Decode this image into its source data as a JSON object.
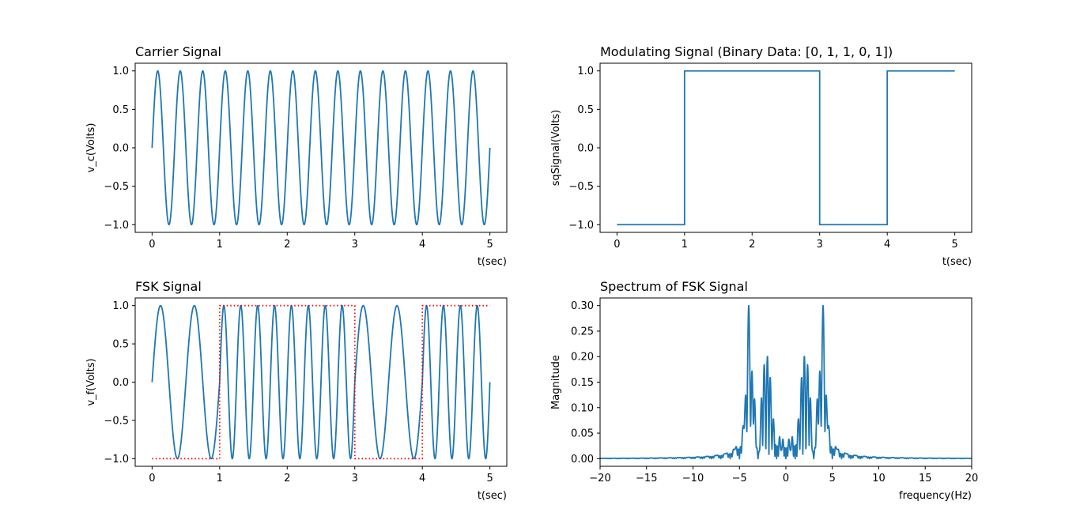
{
  "colors": {
    "line": "#1f77b4",
    "dotted": "#ff0000",
    "axes": "#000000",
    "background": "#ffffff"
  },
  "chart_data": [
    {
      "id": "carrier",
      "type": "line",
      "title": "Carrier Signal",
      "xlabel": "t(sec)",
      "ylabel": "v_c(Volts)",
      "xlim": [
        -0.25,
        5.25
      ],
      "ylim": [
        -1.1,
        1.1
      ],
      "xticks": [
        0,
        1,
        2,
        3,
        4,
        5
      ],
      "xtick_labels": [
        "0",
        "1",
        "2",
        "3",
        "4",
        "5"
      ],
      "yticks": [
        -1.0,
        -0.5,
        0.0,
        0.5,
        1.0
      ],
      "ytick_labels": [
        "−1.0",
        "−0.5",
        "0.0",
        "0.5",
        "1.0"
      ],
      "grid": false,
      "series": [
        {
          "kind": "sine",
          "amplitude": 1,
          "frequency_hz": 3,
          "t_start": 0,
          "t_end": 5,
          "style": "solid"
        }
      ]
    },
    {
      "id": "modulating",
      "type": "line",
      "title": "Modulating Signal (Binary Data: [0, 1, 1, 0, 1])",
      "xlabel": "t(sec)",
      "ylabel": "sqSignal(Volts)",
      "xlim": [
        -0.25,
        5.25
      ],
      "ylim": [
        -1.1,
        1.1
      ],
      "xticks": [
        0,
        1,
        2,
        3,
        4,
        5
      ],
      "xtick_labels": [
        "0",
        "1",
        "2",
        "3",
        "4",
        "5"
      ],
      "yticks": [
        -1.0,
        -0.5,
        0.0,
        0.5,
        1.0
      ],
      "ytick_labels": [
        "−1.0",
        "−0.5",
        "0.0",
        "0.5",
        "1.0"
      ],
      "grid": false,
      "series": [
        {
          "kind": "step",
          "bits": [
            0,
            1,
            1,
            0,
            1
          ],
          "low": -1,
          "high": 1,
          "t_start": 0,
          "t_end": 5,
          "style": "solid"
        }
      ]
    },
    {
      "id": "fsk",
      "type": "line",
      "title": "FSK Signal",
      "xlabel": "t(sec)",
      "ylabel": "v_f(Volts)",
      "xlim": [
        -0.25,
        5.25
      ],
      "ylim": [
        -1.1,
        1.1
      ],
      "xticks": [
        0,
        1,
        2,
        3,
        4,
        5
      ],
      "xtick_labels": [
        "0",
        "1",
        "2",
        "3",
        "4",
        "5"
      ],
      "yticks": [
        -1.0,
        -0.5,
        0.0,
        0.5,
        1.0
      ],
      "ytick_labels": [
        "−1.0",
        "−0.5",
        "0.0",
        "0.5",
        "1.0"
      ],
      "grid": false,
      "series": [
        {
          "kind": "fsk",
          "bits": [
            0,
            1,
            1,
            0,
            1
          ],
          "freq_bit0_hz": 2,
          "freq_bit1_hz": 4,
          "t_start": 0,
          "t_end": 5,
          "style": "solid"
        },
        {
          "kind": "step",
          "bits": [
            0,
            1,
            1,
            0,
            1
          ],
          "low": -1,
          "high": 1,
          "t_start": 0,
          "t_end": 5,
          "style": "dotted",
          "color": "red"
        }
      ]
    },
    {
      "id": "spectrum",
      "type": "line",
      "title": "Spectrum of FSK Signal",
      "xlabel": "frequency(Hz)",
      "ylabel": "Magnitude",
      "xlim": [
        -20,
        20
      ],
      "ylim": [
        -0.015,
        0.315
      ],
      "xticks": [
        -20,
        -15,
        -10,
        -5,
        0,
        5,
        10,
        15,
        20
      ],
      "xtick_labels": [
        "−20",
        "−15",
        "−10",
        "−5",
        "0",
        "5",
        "10",
        "15",
        "20"
      ],
      "yticks": [
        0.0,
        0.05,
        0.1,
        0.15,
        0.2,
        0.25,
        0.3
      ],
      "ytick_labels": [
        "0.00",
        "0.05",
        "0.10",
        "0.15",
        "0.20",
        "0.25",
        "0.30"
      ],
      "grid": false,
      "series": [
        {
          "kind": "spectrum",
          "bits": [
            0,
            1,
            1,
            0,
            1
          ],
          "freq_bit0_hz": 2,
          "freq_bit1_hz": 4,
          "peaks_hz": [
            -4,
            -2,
            2,
            4
          ],
          "peak_magnitudes": [
            0.3,
            0.2,
            0.2,
            0.3
          ],
          "f_range": [
            -20,
            20
          ],
          "style": "solid"
        }
      ]
    }
  ]
}
